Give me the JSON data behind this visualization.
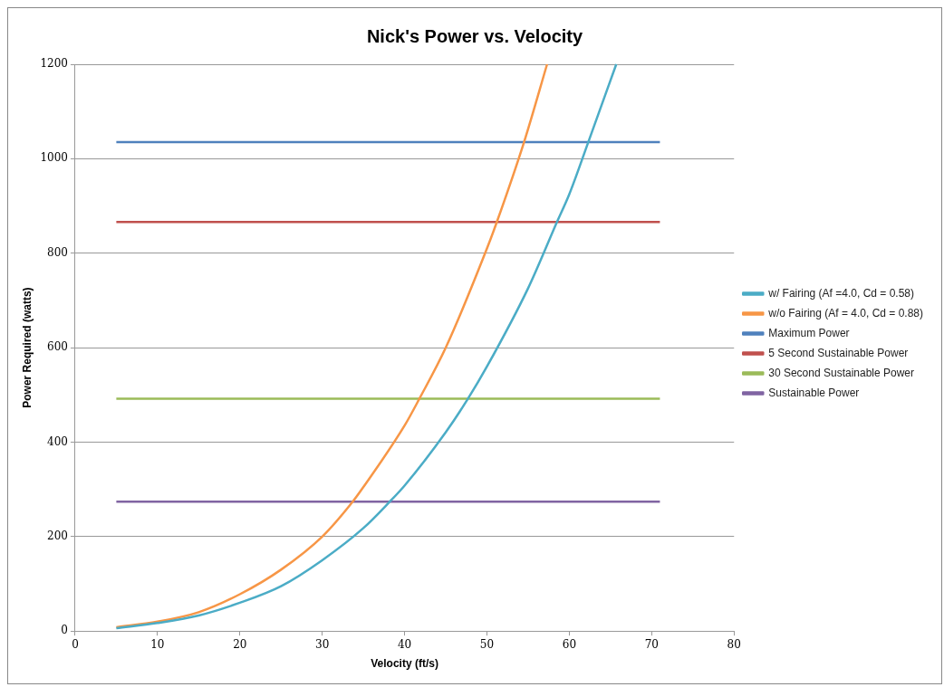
{
  "chart_data": {
    "type": "line",
    "title": "Nick's Power vs. Velocity",
    "xlabel": "Velocity (ft/s)",
    "ylabel": "Power Required (watts)",
    "xlim": [
      0,
      80
    ],
    "xticks": [
      0,
      10,
      20,
      30,
      40,
      50,
      60,
      70,
      80
    ],
    "ylim": [
      0,
      1200
    ],
    "yticks": [
      0,
      200,
      400,
      600,
      800,
      1000,
      1200
    ],
    "grid": "y",
    "legend": "right",
    "marker": "none",
    "series": [
      {
        "name": "w/ Fairing (Af =4.0, Cd = 0.58)",
        "color": "#4bacc6",
        "x": [
          5,
          10,
          15,
          20,
          25,
          30,
          35,
          38.2,
          40,
          45,
          47.7,
          50,
          55,
          58.5,
          60,
          62.3,
          65.7
        ],
        "values": [
          6,
          17,
          33,
          60,
          95,
          150,
          218,
          274,
          308,
          421,
          492,
          560,
          726,
          866,
          925,
          1035,
          1200
        ]
      },
      {
        "name": "w/o Fairing (Af = 4.0, Cd = 0.88)",
        "color": "#f79646",
        "x": [
          5,
          10,
          15,
          20,
          25,
          30,
          33.7,
          35,
          40,
          41.8,
          45,
          50,
          51.2,
          54.5,
          57.3
        ],
        "values": [
          8,
          20,
          40,
          78,
          130,
          200,
          274,
          305,
          435,
          492,
          600,
          810,
          866,
          1035,
          1200
        ]
      },
      {
        "name": "Maximum Power",
        "color": "#4f81bd",
        "x": [
          5,
          71
        ],
        "values": [
          1035,
          1035
        ]
      },
      {
        "name": "5 Second Sustainable Power",
        "color": "#c0504d",
        "x": [
          5,
          71
        ],
        "values": [
          866,
          866
        ]
      },
      {
        "name": "30 Second Sustainable Power",
        "color": "#9bbb59",
        "x": [
          5,
          71
        ],
        "values": [
          492,
          492
        ]
      },
      {
        "name": "Sustainable Power",
        "color": "#8064a2",
        "x": [
          5,
          71
        ],
        "values": [
          274,
          274
        ]
      }
    ]
  }
}
